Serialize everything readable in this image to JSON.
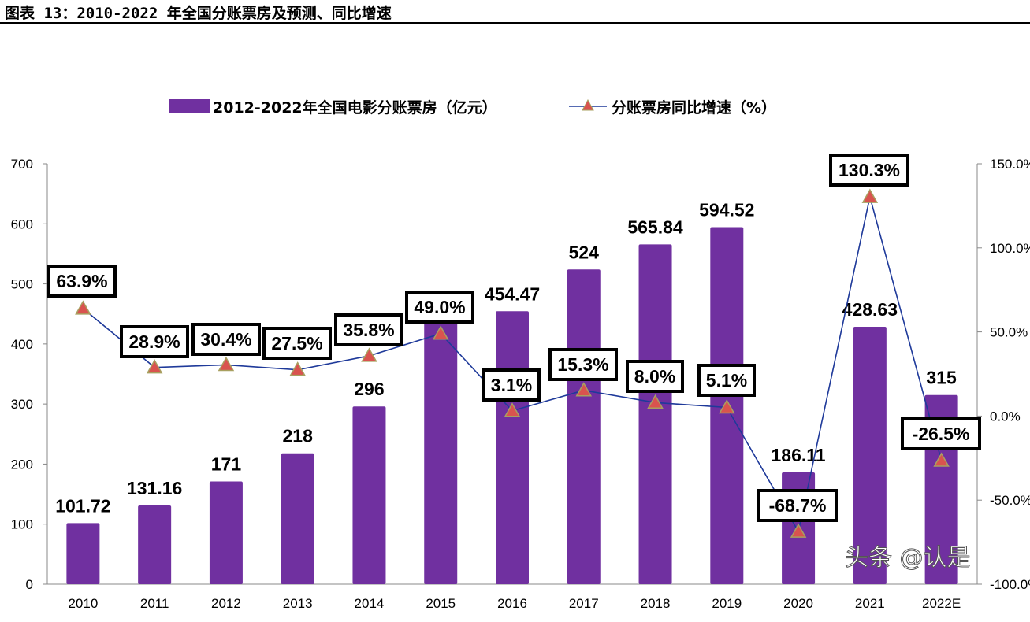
{
  "title": "图表 13：2010-2022 年全国分账票房及预测、同比增速",
  "watermark": "头条 @认是",
  "chart_data": {
    "type": "bar+line",
    "categories": [
      "2010",
      "2011",
      "2012",
      "2013",
      "2014",
      "2015",
      "2016",
      "2017",
      "2018",
      "2019",
      "2020",
      "2021",
      "2022E"
    ],
    "series": [
      {
        "name": "2012-2022年全国电影分账票房（亿元）",
        "type": "bar",
        "axis": "left",
        "color": "#7030A0",
        "values": [
          101.72,
          131.16,
          171,
          218,
          296,
          440,
          454.47,
          524,
          565.84,
          594.52,
          186.11,
          428.63,
          315
        ],
        "labels": [
          "101.72",
          "131.16",
          "171",
          "218",
          "296",
          null,
          "454.47",
          "524",
          "565.84",
          "594.52",
          "186.11",
          "428.63",
          "315"
        ]
      },
      {
        "name": "分账票房同比增速（%）",
        "type": "line",
        "axis": "right",
        "color": "#1F3A9A",
        "marker_color": "#D9534F",
        "values": [
          63.9,
          28.9,
          30.4,
          27.5,
          35.8,
          49.0,
          3.1,
          15.3,
          8.0,
          5.1,
          -68.7,
          130.3,
          -26.5
        ],
        "labels": [
          "63.9%",
          "28.9%",
          "30.4%",
          "27.5%",
          "35.8%",
          "49.0%",
          "3.1%",
          "15.3%",
          "8.0%",
          "5.1%",
          "-68.7%",
          "130.3%",
          "-26.5%"
        ]
      }
    ],
    "y_left": {
      "range": [
        0,
        700
      ],
      "ticks": [
        "0",
        "100",
        "200",
        "300",
        "400",
        "500",
        "600",
        "700"
      ]
    },
    "y_right": {
      "range": [
        -100,
        150
      ],
      "ticks": [
        "-100.0%",
        "-50.0%",
        "0.0%",
        "50.0%",
        "100.0%",
        "150.0%"
      ]
    },
    "legend": "top-center",
    "grid": false
  }
}
